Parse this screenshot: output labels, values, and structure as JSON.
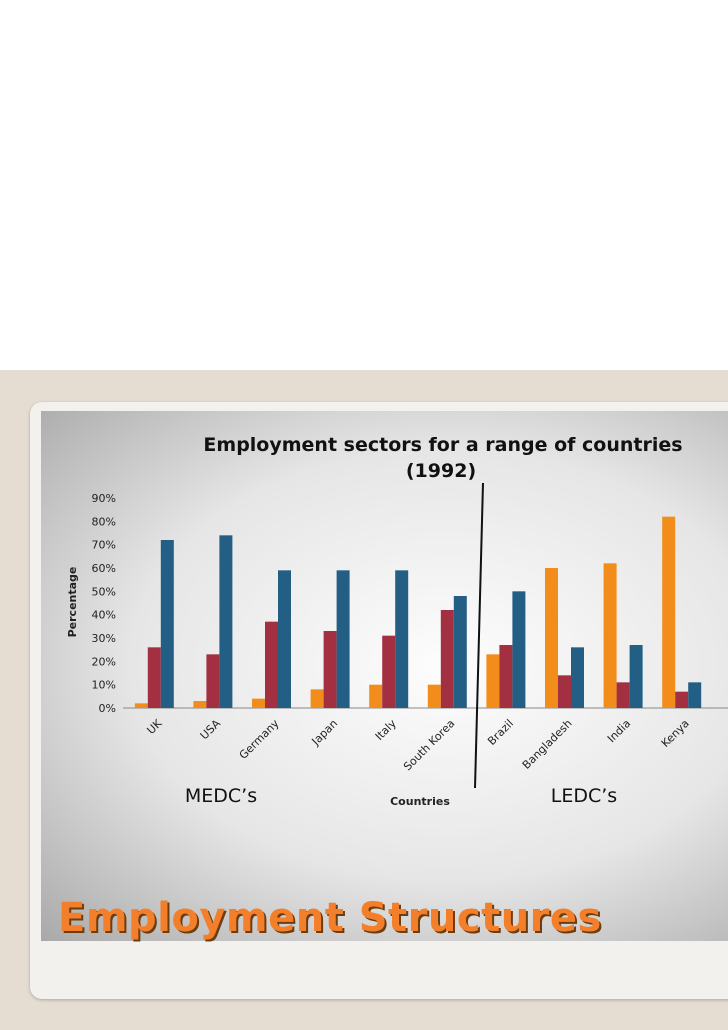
{
  "slide": {
    "title": "Employment Structures"
  },
  "chart_data": {
    "type": "bar",
    "title": "Employment sectors for a range of countries",
    "title_line2": "(1992)",
    "xlabel": "Countries",
    "ylabel": "Percentage",
    "ylim": [
      0,
      90
    ],
    "yticks": [
      "0%",
      "10%",
      "20%",
      "30%",
      "40%",
      "50%",
      "60%",
      "70%",
      "80%",
      "90%"
    ],
    "grid": false,
    "legend": "none",
    "categories": [
      "UK",
      "USA",
      "Germany",
      "Japan",
      "Italy",
      "South Korea",
      "Brazil",
      "Bangladesh",
      "India",
      "Kenya"
    ],
    "series": [
      {
        "color": "#f28c1a",
        "values": [
          2,
          3,
          4,
          8,
          10,
          10,
          23,
          60,
          62,
          82
        ]
      },
      {
        "color": "#a33041",
        "values": [
          26,
          23,
          37,
          33,
          31,
          42,
          27,
          14,
          11,
          7
        ]
      },
      {
        "color": "#235f84",
        "values": [
          72,
          74,
          59,
          59,
          59,
          48,
          50,
          26,
          27,
          11
        ]
      }
    ],
    "annotations": {
      "medc_label": "MEDC’s",
      "ledc_label": "LEDC’s"
    }
  }
}
